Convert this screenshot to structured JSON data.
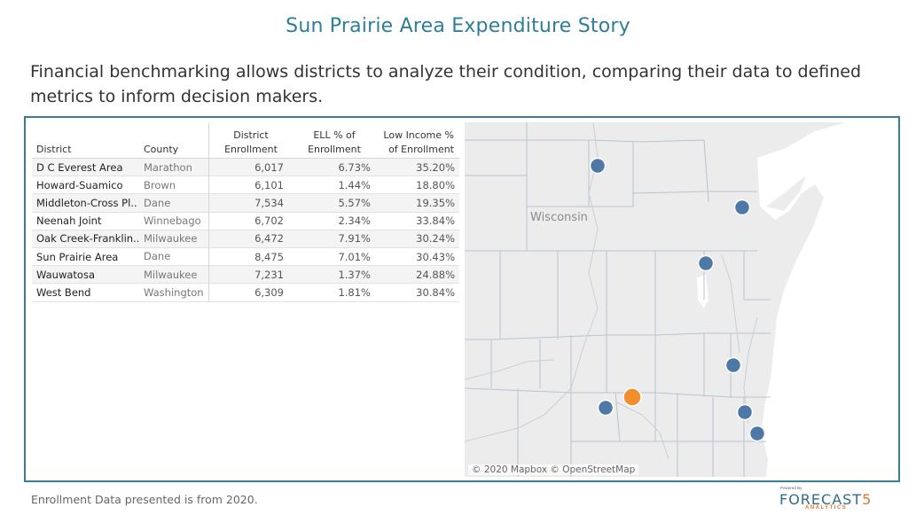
{
  "title": "Sun Prairie Area Expenditure Story",
  "intro": "Financial benchmarking allows districts to analyze their condition, comparing their data to defined metrics to inform decision makers.",
  "table": {
    "headers": {
      "district": "District",
      "county": "County",
      "enrollment_line1": "District",
      "enrollment_line2": "Enrollment",
      "ell_line1": "ELL % of",
      "ell_line2": "Enrollment",
      "low_income_line1": "Low Income %",
      "low_income_line2": "of Enrollment"
    },
    "rows": [
      {
        "district": "D C Everest Area",
        "county": "Marathon",
        "enrollment": "6,017",
        "ell": "6.73%",
        "low_income": "35.20%"
      },
      {
        "district": "Howard-Suamico",
        "county": "Brown",
        "enrollment": "6,101",
        "ell": "1.44%",
        "low_income": "18.80%"
      },
      {
        "district": "Middleton-Cross Pl..",
        "county": "Dane",
        "enrollment": "7,534",
        "ell": "5.57%",
        "low_income": "19.35%"
      },
      {
        "district": "Neenah Joint",
        "county": "Winnebago",
        "enrollment": "6,702",
        "ell": "2.34%",
        "low_income": "33.84%"
      },
      {
        "district": "Oak Creek-Franklin..",
        "county": "Milwaukee",
        "enrollment": "6,472",
        "ell": "7.91%",
        "low_income": "30.24%"
      },
      {
        "district": "Sun Prairie Area",
        "county": "Dane",
        "enrollment": "8,475",
        "ell": "7.01%",
        "low_income": "30.43%"
      },
      {
        "district": "Wauwatosa",
        "county": "Milwaukee",
        "enrollment": "7,231",
        "ell": "1.37%",
        "low_income": "24.88%"
      },
      {
        "district": "West Bend",
        "county": "Washington",
        "enrollment": "6,309",
        "ell": "1.81%",
        "low_income": "30.84%"
      }
    ]
  },
  "map": {
    "state_label": "Wisconsin",
    "attribution": "© 2020 Mapbox © OpenStreetMap",
    "colors": {
      "comparison": "#4e79a7",
      "selected": "#f28e2b",
      "water": "#ffffff",
      "land": "#ececec"
    },
    "markers": [
      {
        "district": "D C Everest Area",
        "type": "comparison"
      },
      {
        "district": "Howard-Suamico",
        "type": "comparison"
      },
      {
        "district": "Neenah Joint",
        "type": "comparison"
      },
      {
        "district": "West Bend",
        "type": "comparison"
      },
      {
        "district": "Middleton-Cross Pl..",
        "type": "comparison"
      },
      {
        "district": "Sun Prairie Area",
        "type": "selected"
      },
      {
        "district": "Wauwatosa",
        "type": "comparison"
      },
      {
        "district": "Oak Creek-Franklin..",
        "type": "comparison"
      }
    ]
  },
  "footer_note": "Enrollment Data presented is from 2020.",
  "logo": {
    "powered": "Powered By",
    "brand_main": "FORECAST",
    "brand_accent": "5",
    "brand_sub": "ANALYTICS"
  }
}
